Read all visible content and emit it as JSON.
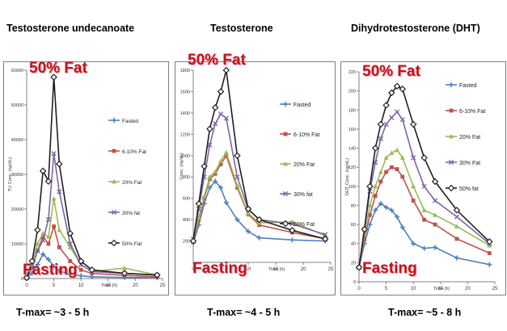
{
  "titles": [
    "Testosterone undecanoate",
    "Testosterone",
    "Dihydrotestosterone (DHT)"
  ],
  "tmax": [
    "T-max= ~3 - 5 h",
    "T-max= ~4 - 5 h",
    "T-max= ~5 - 8 h"
  ],
  "annotations": {
    "fat": "50% Fat",
    "fasting": "Fasting"
  },
  "colors": {
    "Fasted": "#4f81bd",
    "6-10% Fat": "#c0504d",
    "20% Fat": "#9bbb59",
    "30% Fat": "#8064a2",
    "30% fat": "#8064a2",
    "50% Fat": "#1f1f1f",
    "50% fat": "#1f1f1f",
    "annotation": "#c0141f"
  },
  "chart_data": [
    {
      "type": "line",
      "title": "Testosterone undecanoate",
      "xlabel": "Time (h)",
      "ylabel": "TU Conc. (ng/dL)",
      "xlim": [
        0,
        25
      ],
      "ylim": [
        0,
        60000
      ],
      "xticks": [
        0,
        5,
        10,
        15,
        20,
        25
      ],
      "yticks": [
        0,
        10000,
        20000,
        30000,
        40000,
        50000,
        60000
      ],
      "x": [
        0,
        1,
        2,
        3,
        4,
        5,
        6,
        8,
        10,
        12,
        18,
        24
      ],
      "series": [
        {
          "name": "Fasted",
          "values": [
            200,
            1500,
            4000,
            7000,
            5500,
            3500,
            2200,
            1200,
            800,
            500,
            300,
            200
          ]
        },
        {
          "name": "6-10% Fat",
          "values": [
            200,
            3000,
            8000,
            12000,
            10000,
            15000,
            9000,
            5000,
            2500,
            1500,
            900,
            500
          ]
        },
        {
          "name": "20% Fat",
          "values": [
            200,
            4000,
            10000,
            13000,
            12000,
            23000,
            14000,
            9000,
            4000,
            2000,
            3000,
            1000
          ]
        },
        {
          "name": "30% fat",
          "values": [
            200,
            3000,
            8000,
            11000,
            17000,
            36000,
            25000,
            10000,
            4000,
            2000,
            1500,
            1000
          ]
        },
        {
          "name": "50% Fat",
          "values": [
            200,
            5000,
            14000,
            31000,
            28000,
            58000,
            33000,
            13000,
            5000,
            2500,
            1500,
            1000
          ]
        }
      ]
    },
    {
      "type": "line",
      "title": "Testosterone",
      "xlabel": "Time (h)",
      "ylabel": "Conc. (ng/dL)",
      "xlim": [
        0,
        25
      ],
      "ylim": [
        0,
        1800
      ],
      "xticks": [
        0,
        5,
        10,
        15,
        20,
        25
      ],
      "yticks": [
        200,
        400,
        600,
        800,
        1000,
        1200,
        1400,
        1600,
        1800
      ],
      "x": [
        0,
        1,
        2,
        3,
        4,
        5,
        6,
        8,
        10,
        12,
        18,
        24
      ],
      "series": [
        {
          "name": "Fasted",
          "values": [
            180,
            350,
            550,
            700,
            760,
            700,
            560,
            400,
            290,
            230,
            210,
            200
          ]
        },
        {
          "name": "6-10% Fat",
          "values": [
            200,
            400,
            600,
            780,
            830,
            920,
            1000,
            700,
            450,
            350,
            280,
            220
          ]
        },
        {
          "name": "20% Fat",
          "values": [
            220,
            420,
            620,
            800,
            850,
            950,
            1030,
            720,
            460,
            370,
            380,
            250
          ]
        },
        {
          "name": "30% fat",
          "values": [
            220,
            500,
            800,
            1100,
            1300,
            1390,
            1350,
            800,
            500,
            400,
            360,
            260
          ]
        },
        {
          "name": "50% Fat",
          "values": [
            200,
            550,
            900,
            1250,
            1450,
            1600,
            1800,
            1000,
            500,
            400,
            300,
            220
          ]
        }
      ]
    },
    {
      "type": "line",
      "title": "Dihydrotestosterone (DHT)",
      "xlabel": "Time (h)",
      "ylabel": "DHT Conc. (ng/dL)",
      "xlim": [
        0,
        25
      ],
      "ylim": [
        0,
        220
      ],
      "xticks": [
        0,
        5,
        10,
        15,
        20,
        25
      ],
      "yticks": [
        0,
        20,
        40,
        60,
        80,
        100,
        120,
        140,
        160,
        180,
        200,
        220
      ],
      "x": [
        0,
        1,
        2,
        3,
        4,
        5,
        6,
        7,
        8,
        10,
        12,
        14,
        18,
        24
      ],
      "series": [
        {
          "name": "Fasted",
          "values": [
            15,
            40,
            60,
            75,
            82,
            78,
            75,
            68,
            57,
            40,
            35,
            36,
            25,
            18
          ]
        },
        {
          "name": "6-10% Fat",
          "values": [
            15,
            45,
            70,
            90,
            105,
            115,
            120,
            118,
            110,
            85,
            65,
            60,
            45,
            30
          ]
        },
        {
          "name": "20% Fat",
          "values": [
            15,
            50,
            80,
            100,
            115,
            130,
            135,
            138,
            130,
            100,
            75,
            70,
            58,
            38
          ]
        },
        {
          "name": "30% Fat",
          "values": [
            15,
            55,
            95,
            125,
            150,
            165,
            172,
            178,
            170,
            130,
            100,
            85,
            68,
            40
          ]
        },
        {
          "name": "50% fat",
          "values": [
            15,
            55,
            100,
            140,
            165,
            185,
            198,
            205,
            202,
            165,
            130,
            105,
            75,
            42
          ]
        }
      ]
    }
  ]
}
